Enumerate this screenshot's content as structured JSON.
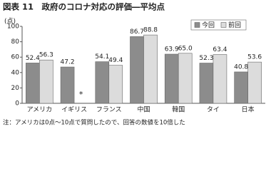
{
  "chart_data": {
    "type": "bar",
    "title": "図表 11　政府のコロナ対応の評価―平均点",
    "y_label": "(点)",
    "note": "注：アメリカは0点～10点で質問したので、回答の数値を10倍した",
    "categories": [
      "アメリカ",
      "イギリス",
      "フランス",
      "中国",
      "韓国",
      "タイ",
      "日本"
    ],
    "series": [
      {
        "name": "今回",
        "color": "#8c8c8c",
        "values": [
          52.4,
          47.2,
          54.1,
          86.7,
          63.9,
          52.3,
          40.8
        ]
      },
      {
        "name": "前回",
        "color": "#dcdcdc",
        "values": [
          56.3,
          null,
          49.4,
          88.8,
          65.0,
          63.4,
          53.6
        ],
        "value_labels": [
          "56.3",
          "*",
          "49.4",
          "88.8",
          "65.0",
          "63.4",
          "53.6"
        ]
      }
    ],
    "ylim": [
      0,
      100
    ],
    "yticks": [
      0,
      20,
      40,
      60,
      80,
      100
    ],
    "grid": false,
    "legend": "upper right"
  }
}
